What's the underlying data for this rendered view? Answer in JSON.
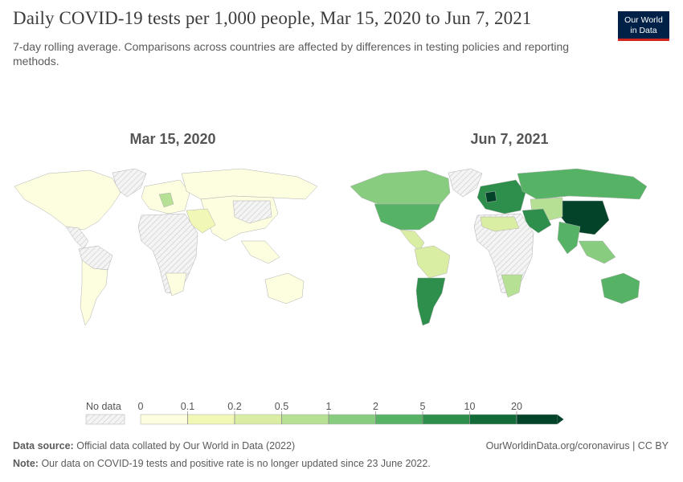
{
  "header": {
    "title": "Daily COVID-19 tests per 1,000 people, Mar 15, 2020 to Jun 7, 2021",
    "subtitle": "7-day rolling average. Comparisons across countries are affected by differences in testing policies and reporting methods."
  },
  "logo": {
    "line1": "Our World",
    "line2": "in Data"
  },
  "chart_data": {
    "type": "choropleth",
    "maps": [
      {
        "date_label": "Mar 15, 2020"
      },
      {
        "date_label": "Jun 7, 2021"
      }
    ],
    "legend": {
      "no_data_label": "No data",
      "ticks": [
        "0",
        "0.1",
        "0.2",
        "0.5",
        "1",
        "2",
        "5",
        "10",
        "20"
      ],
      "colors": [
        "#fdfde0",
        "#f1f7b5",
        "#d9eea3",
        "#b6e094",
        "#88cc80",
        "#56b365",
        "#2e8f4c",
        "#146b3a",
        "#03432a"
      ]
    }
  },
  "footer": {
    "source_label": "Data source:",
    "source_text": "Official data collated by Our World in Data (2022)",
    "note_label": "Note:",
    "note_text": "Our data on COVID-19 tests and positive rate is no longer updated since 23 June 2022.",
    "link": "OurWorldinData.org/coronavirus | CC BY"
  }
}
